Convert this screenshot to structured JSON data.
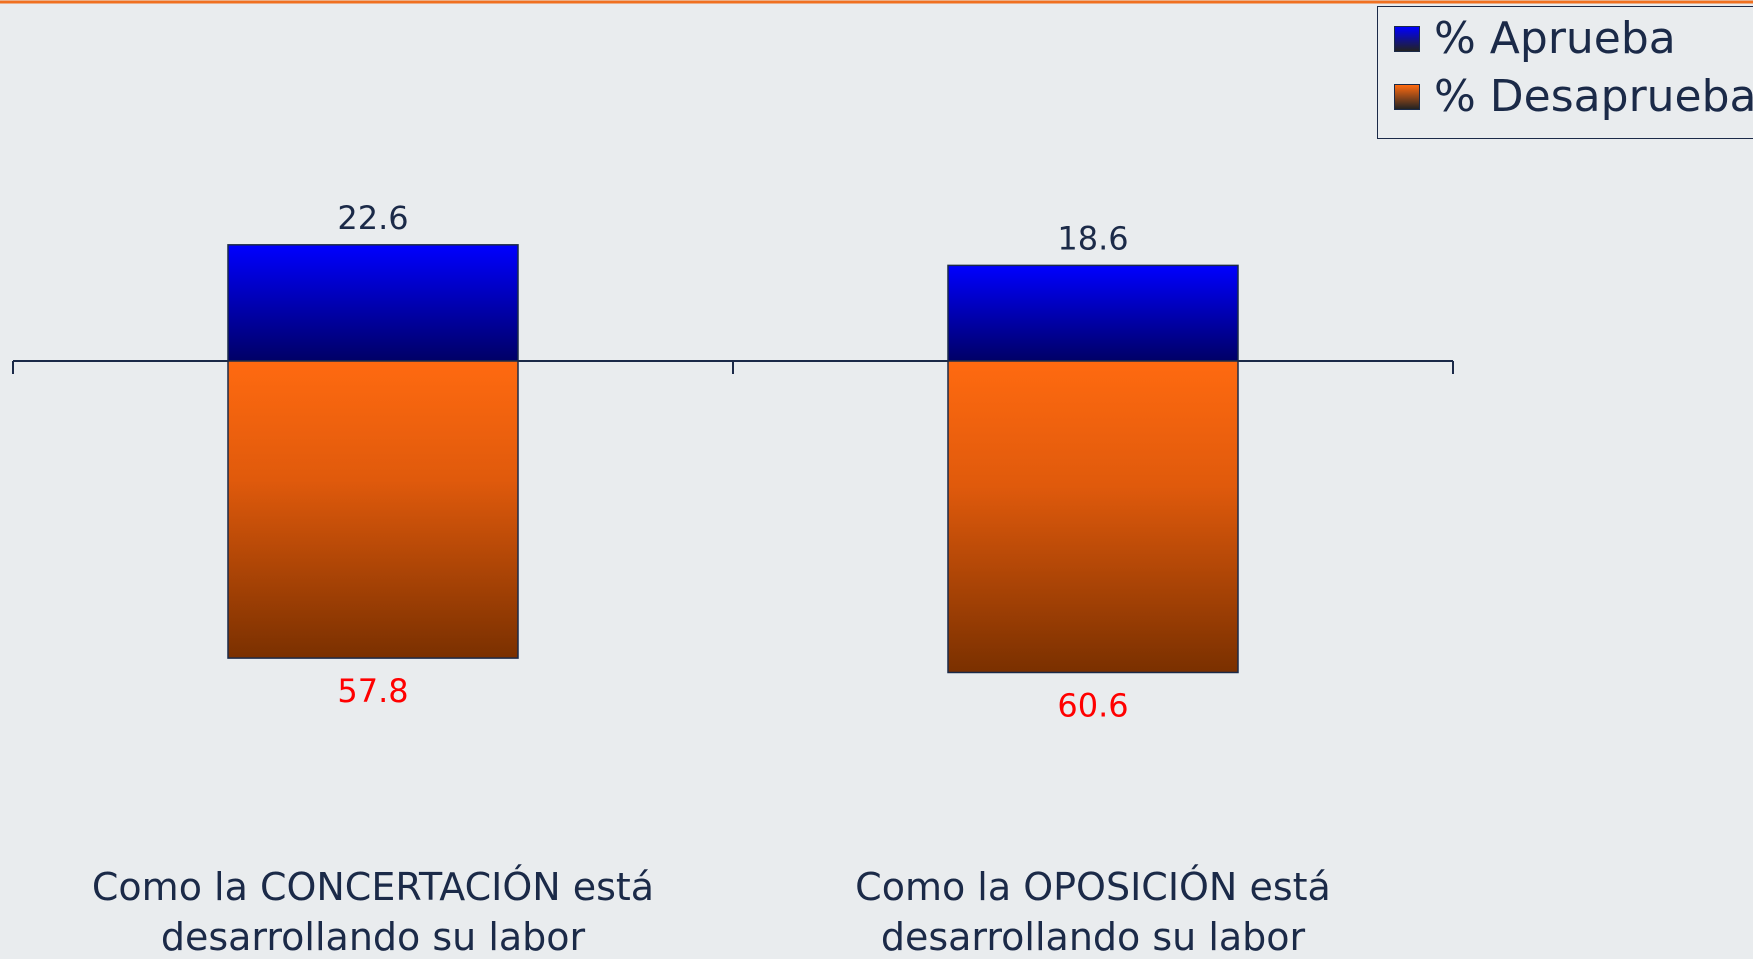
{
  "chart_data": {
    "type": "diverging-bar",
    "categories": [
      "Como la CONCERTACIÓN está desarrollando su labor",
      "Como la OPOSICIÓN está desarrollando su labor"
    ],
    "series": [
      {
        "name": "% Aprueba",
        "color": "#0000ff",
        "label_color": "#1b2a48",
        "values": [
          22.6,
          18.6
        ]
      },
      {
        "name": "% Desaprueba",
        "color": "#ff6a10",
        "label_color": "#ff0000",
        "values": [
          57.8,
          60.6
        ]
      }
    ]
  }
}
